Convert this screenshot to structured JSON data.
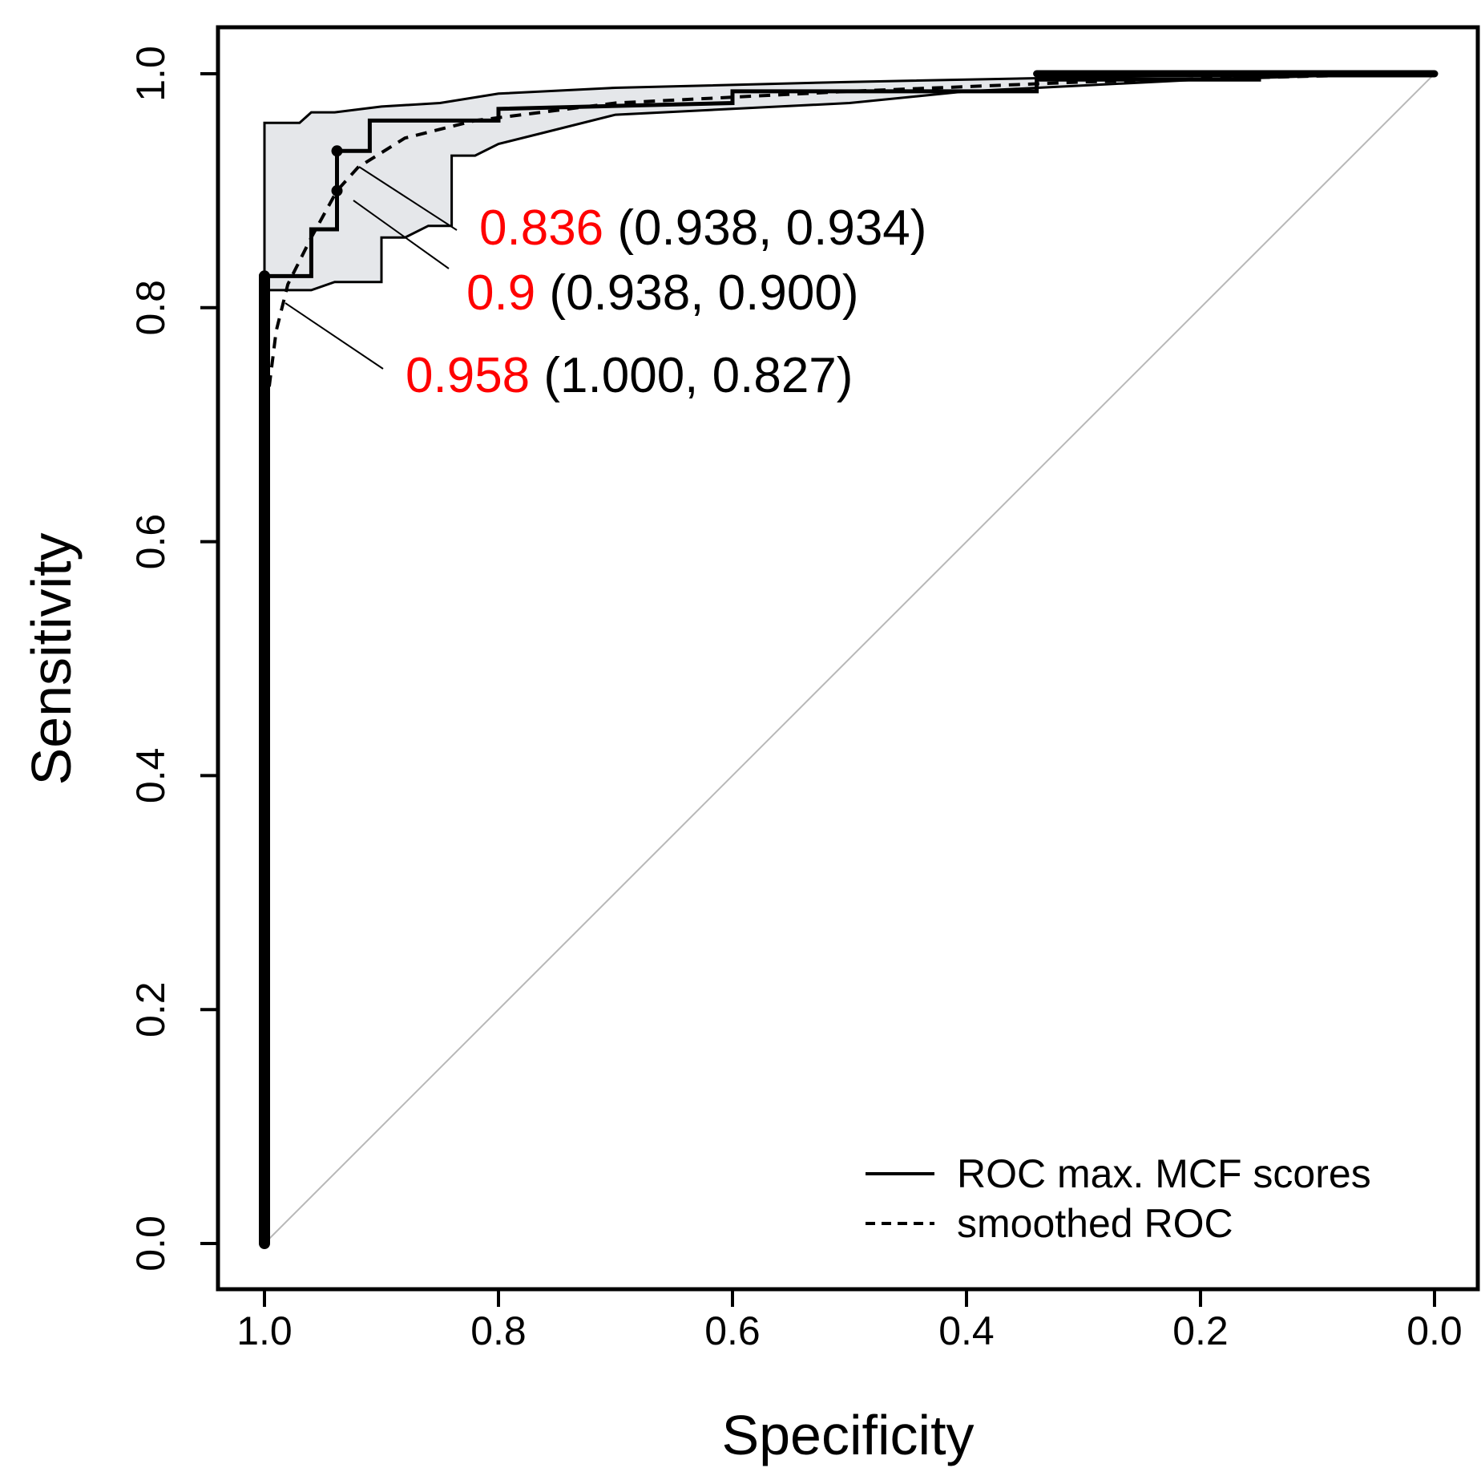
{
  "chart_data": {
    "type": "line",
    "xlabel": "Specificity",
    "ylabel": "Sensitivity",
    "xlim": [
      1.0,
      0.0
    ],
    "ylim": [
      0.0,
      1.0
    ],
    "x_reversed": true,
    "grid": false,
    "x_ticks": [
      "1.0",
      "0.8",
      "0.6",
      "0.4",
      "0.2",
      "0.0"
    ],
    "x_tick_values": [
      1.0,
      0.8,
      0.6,
      0.4,
      0.2,
      0.0
    ],
    "y_ticks": [
      "0.0",
      "0.2",
      "0.4",
      "0.6",
      "0.8",
      "1.0"
    ],
    "y_tick_values": [
      0.0,
      0.2,
      0.4,
      0.6,
      0.8,
      1.0
    ],
    "legend": {
      "position": "bottom-right",
      "entries": [
        {
          "label": "ROC max. MCF scores",
          "style": "solid"
        },
        {
          "label": "smoothed ROC",
          "style": "dashed"
        }
      ]
    },
    "series": [
      {
        "name": "ROC max. MCF scores",
        "style": "solid",
        "points": [
          [
            1.0,
            0.0
          ],
          [
            1.0,
            0.827
          ],
          [
            0.96,
            0.827
          ],
          [
            0.96,
            0.867
          ],
          [
            0.938,
            0.867
          ],
          [
            0.938,
            0.934
          ],
          [
            0.91,
            0.934
          ],
          [
            0.91,
            0.96
          ],
          [
            0.8,
            0.96
          ],
          [
            0.8,
            0.97
          ],
          [
            0.6,
            0.975
          ],
          [
            0.6,
            0.985
          ],
          [
            0.34,
            0.985
          ],
          [
            0.34,
            0.995
          ],
          [
            0.15,
            0.995
          ],
          [
            0.15,
            1.0
          ],
          [
            0.0,
            1.0
          ]
        ]
      },
      {
        "name": "smoothed ROC",
        "style": "dashed",
        "points": [
          [
            1.0,
            0.7
          ],
          [
            0.99,
            0.78
          ],
          [
            0.98,
            0.82
          ],
          [
            0.96,
            0.86
          ],
          [
            0.938,
            0.9
          ],
          [
            0.92,
            0.92
          ],
          [
            0.88,
            0.945
          ],
          [
            0.82,
            0.96
          ],
          [
            0.7,
            0.975
          ],
          [
            0.5,
            0.985
          ],
          [
            0.3,
            0.993
          ],
          [
            0.1,
            0.998
          ],
          [
            0.0,
            1.0
          ]
        ]
      },
      {
        "name": "",
        "style": "diagonal",
        "points": [
          [
            1.0,
            0.0
          ],
          [
            0.0,
            1.0
          ]
        ]
      }
    ],
    "confidence_band": {
      "upper": [
        [
          1.0,
          0.958
        ],
        [
          0.97,
          0.958
        ],
        [
          0.96,
          0.967
        ],
        [
          0.94,
          0.967
        ],
        [
          0.9,
          0.972
        ],
        [
          0.85,
          0.975
        ],
        [
          0.8,
          0.983
        ],
        [
          0.7,
          0.988
        ],
        [
          0.5,
          0.993
        ],
        [
          0.3,
          0.997
        ],
        [
          0.1,
          1.0
        ],
        [
          0.0,
          1.0
        ]
      ],
      "lower": [
        [
          0.0,
          1.0
        ],
        [
          0.1,
          0.998
        ],
        [
          0.2,
          0.995
        ],
        [
          0.3,
          0.99
        ],
        [
          0.4,
          0.985
        ],
        [
          0.5,
          0.975
        ],
        [
          0.6,
          0.97
        ],
        [
          0.7,
          0.965
        ],
        [
          0.76,
          0.95
        ],
        [
          0.8,
          0.94
        ],
        [
          0.82,
          0.93
        ],
        [
          0.84,
          0.93
        ],
        [
          0.84,
          0.87
        ],
        [
          0.86,
          0.87
        ],
        [
          0.88,
          0.86
        ],
        [
          0.9,
          0.86
        ],
        [
          0.9,
          0.822
        ],
        [
          0.94,
          0.822
        ],
        [
          0.96,
          0.815
        ],
        [
          1.0,
          0.815
        ]
      ]
    },
    "thresholds": [
      {
        "threshold": "0.836",
        "coords": "(0.938, 0.934)",
        "specificity": 0.938,
        "sensitivity": 0.934
      },
      {
        "threshold": "0.9",
        "coords": "(0.938, 0.900)",
        "specificity": 0.938,
        "sensitivity": 0.9
      },
      {
        "threshold": "0.958",
        "coords": "(1.000, 0.827)",
        "specificity": 1.0,
        "sensitivity": 0.827
      }
    ],
    "colors": {
      "curve": "#000000",
      "band": "#e5e7ea",
      "diagonal": "#b8b8b8",
      "threshold_value": "#ff0000",
      "coords_text": "#000000"
    }
  }
}
